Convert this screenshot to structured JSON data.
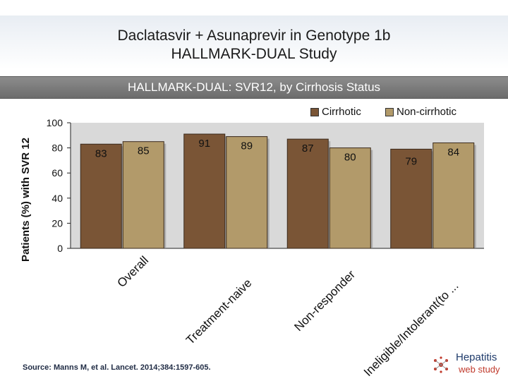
{
  "header": {
    "title_line1": "Daclatasvir + Asunaprevir in Genotype 1b",
    "title_line2": "HALLMARK-DUAL Study",
    "subtitle": "HALLMARK-DUAL: SVR12, by Cirrhosis Status"
  },
  "colors": {
    "cirrhotic": "#7a5536",
    "non_cirrhotic": "#b29a6a",
    "plot_background": "#d9d9d9",
    "subtitle_bar": "#7d7d7d"
  },
  "chart_data": {
    "type": "bar",
    "categories": [
      "Overall",
      "Treatment-naive",
      "Non-responder",
      "Ineligible/Intolerant(to ..."
    ],
    "series": [
      {
        "name": "Cirrhotic",
        "values": [
          83,
          91,
          87,
          79
        ]
      },
      {
        "name": "Non-cirrhotic",
        "values": [
          85,
          89,
          80,
          84
        ]
      }
    ],
    "ylabel": "Patients (%) with SVR 12",
    "ylim": [
      0,
      100
    ],
    "yticks": [
      0,
      20,
      40,
      60,
      80,
      100
    ],
    "legend_position": "top-right",
    "grid": false
  },
  "footer": {
    "source": "Source: Manns M, et al. Lancet. 2014;384:1597-605.",
    "logo_line1": "Hepatitis",
    "logo_line2": "web study"
  }
}
